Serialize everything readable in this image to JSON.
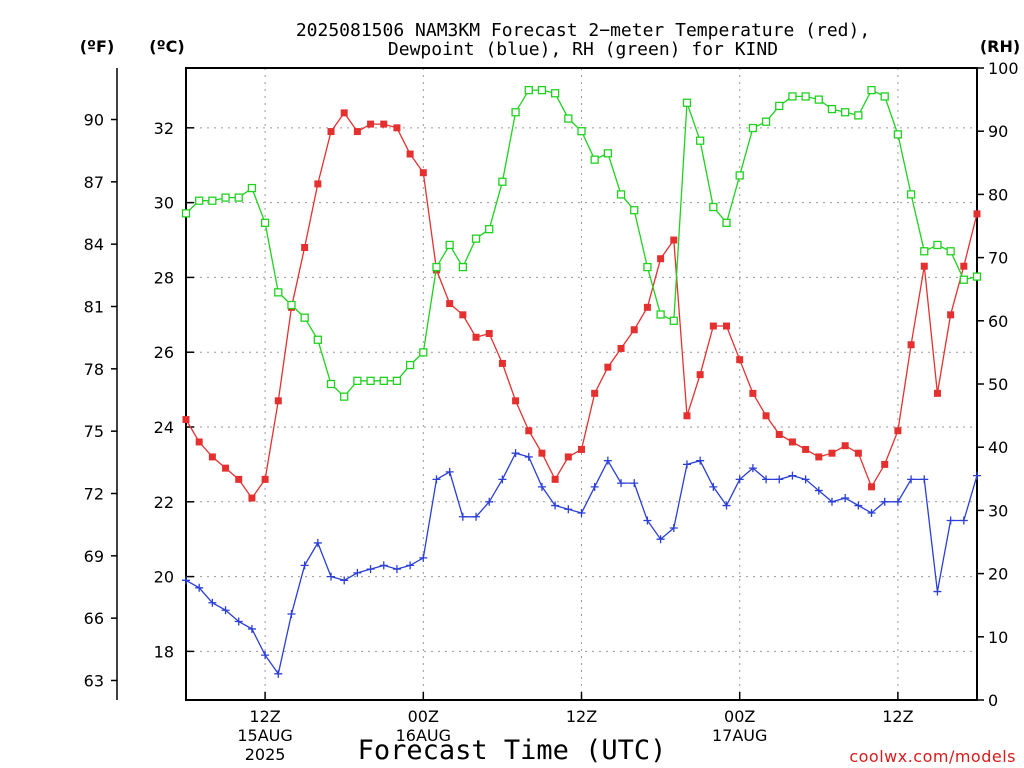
{
  "chart_data": {
    "type": "line",
    "title_lines": [
      "2025081506 NAM3KM Forecast 2−meter Temperature (red),",
      "Dewpoint (blue), RH (green) for KIND"
    ],
    "xlabel": "Forecast Time (UTC)",
    "credit": "coolwx.com/models",
    "units": {
      "fahrenheit": "(ºF)",
      "celsius": "(ºC)",
      "rh": "(RH)"
    },
    "x_ticks": [
      {
        "hour": 6,
        "lines": [
          "12Z",
          "15AUG",
          "2025"
        ]
      },
      {
        "hour": 18,
        "lines": [
          "00Z",
          "16AUG"
        ]
      },
      {
        "hour": 30,
        "lines": [
          "12Z"
        ]
      },
      {
        "hour": 42,
        "lines": [
          "00Z",
          "17AUG"
        ]
      },
      {
        "hour": 54,
        "lines": [
          "12Z"
        ]
      }
    ],
    "x_range_hours": [
      0,
      60
    ],
    "celsius_ticks": [
      18,
      20,
      22,
      24,
      26,
      28,
      30,
      32
    ],
    "celsius_range": [
      16.7,
      33.6
    ],
    "fahrenheit_ticks": [
      63,
      66,
      69,
      72,
      75,
      78,
      81,
      84,
      87,
      90
    ],
    "rh_ticks": [
      0,
      10,
      20,
      30,
      40,
      50,
      60,
      70,
      80,
      90,
      100
    ],
    "rh_range": [
      0,
      100
    ],
    "grid": true,
    "series": [
      {
        "name": "Temperature",
        "unit": "C",
        "color": "#e53030",
        "marker": "filled-square",
        "values": [
          24.2,
          23.6,
          23.2,
          22.9,
          22.6,
          22.1,
          22.6,
          24.7,
          27.2,
          28.8,
          30.5,
          31.9,
          32.4,
          31.9,
          32.1,
          32.1,
          32.0,
          31.3,
          30.8,
          28.2,
          27.3,
          27.0,
          26.4,
          26.5,
          25.7,
          24.7,
          23.9,
          23.3,
          22.6,
          23.2,
          23.4,
          24.9,
          25.6,
          26.1,
          26.6,
          27.2,
          28.5,
          29.0,
          24.3,
          25.4,
          26.7,
          26.7,
          25.8,
          24.9,
          24.3,
          23.8,
          23.6,
          23.4,
          23.2,
          23.3,
          23.5,
          23.3,
          22.4,
          23.0,
          23.9,
          26.2,
          28.3,
          24.9,
          27.0,
          28.3,
          29.7
        ]
      },
      {
        "name": "Dewpoint",
        "unit": "C",
        "color": "#2b3fd6",
        "marker": "plus",
        "values": [
          19.9,
          19.7,
          19.3,
          19.1,
          18.8,
          18.6,
          17.9,
          17.4,
          19.0,
          20.3,
          20.9,
          20.0,
          19.9,
          20.1,
          20.2,
          20.3,
          20.2,
          20.3,
          20.5,
          22.6,
          22.8,
          21.6,
          21.6,
          22.0,
          22.6,
          23.3,
          23.2,
          22.4,
          21.9,
          21.8,
          21.7,
          22.4,
          23.1,
          22.5,
          22.5,
          21.5,
          21.0,
          21.3,
          23.0,
          23.1,
          22.4,
          21.9,
          22.6,
          22.9,
          22.6,
          22.6,
          22.7,
          22.6,
          22.3,
          22.0,
          22.1,
          21.9,
          21.7,
          22.0,
          22.0,
          22.6,
          22.6,
          19.6,
          21.5,
          21.5,
          22.7
        ]
      },
      {
        "name": "RH",
        "unit": "%",
        "color": "#1fd21f",
        "marker": "open-square",
        "values": [
          77,
          79,
          79,
          79.5,
          79.5,
          81,
          75.5,
          64.5,
          62.5,
          60.5,
          57,
          50,
          48,
          50.5,
          50.5,
          50.5,
          50.5,
          53,
          55,
          68.5,
          72,
          68.5,
          73,
          74.5,
          82,
          93,
          96.5,
          96.5,
          96,
          92,
          90,
          85.5,
          86.5,
          80,
          77.5,
          68.5,
          61,
          60,
          94.5,
          88.5,
          78,
          75.5,
          83,
          90.5,
          91.5,
          94,
          95.5,
          95.5,
          95,
          93.5,
          93,
          92.5,
          96.5,
          95.5,
          89.5,
          80,
          71,
          72,
          71,
          66.5,
          67
        ]
      }
    ]
  }
}
